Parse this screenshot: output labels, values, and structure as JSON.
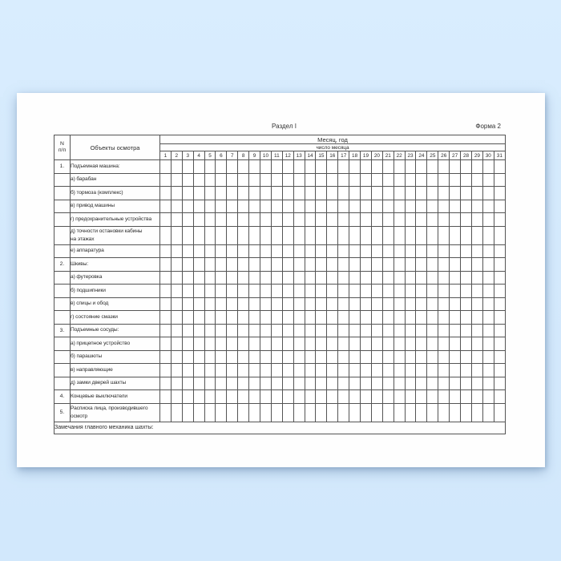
{
  "page": {
    "section_title": "Раздел I",
    "form_label": "Форма 2"
  },
  "table": {
    "num_col_header": "N\nп/п",
    "objects_header": "Объекты осмотра",
    "month_year_header": "Месяц, год",
    "day_of_month_header": "число месяца",
    "days": [
      1,
      2,
      3,
      4,
      5,
      6,
      7,
      8,
      9,
      10,
      11,
      12,
      13,
      14,
      15,
      16,
      17,
      18,
      19,
      20,
      21,
      22,
      23,
      24,
      25,
      26,
      27,
      28,
      29,
      30,
      31
    ],
    "rows": [
      {
        "num": "1.",
        "label": "Подъемная машина:",
        "tall": false
      },
      {
        "num": "",
        "label": "а) барабан",
        "tall": false
      },
      {
        "num": "",
        "label": "б) тормоза (комплекс)",
        "tall": false
      },
      {
        "num": "",
        "label": "в) привод машины",
        "tall": false
      },
      {
        "num": "",
        "label": "г) предохранительные устройства",
        "tall": false
      },
      {
        "num": "",
        "label": "д) точности остановки кабины\nна этажах",
        "tall": true
      },
      {
        "num": "",
        "label": "е) аппаратура",
        "tall": false
      },
      {
        "num": "2.",
        "label": "Шкивы:",
        "tall": false
      },
      {
        "num": "",
        "label": "а) футеровка",
        "tall": false
      },
      {
        "num": "",
        "label": "б) подшипники",
        "tall": false
      },
      {
        "num": "",
        "label": "в) спицы и обод",
        "tall": false
      },
      {
        "num": "",
        "label": "г) состояние смазки",
        "tall": false
      },
      {
        "num": "3.",
        "label": "Подъемные сосуды:",
        "tall": false
      },
      {
        "num": "",
        "label": "а) прицепное устройство",
        "tall": false
      },
      {
        "num": "",
        "label": "б) парашюты",
        "tall": false
      },
      {
        "num": "",
        "label": "в) направляющие",
        "tall": false
      },
      {
        "num": "",
        "label": "д) замки дверей шахты",
        "tall": false
      },
      {
        "num": "4.",
        "label": "Концевые выключатели",
        "tall": false
      },
      {
        "num": "5.",
        "label": "Расписка лица, производившего\nосмотр",
        "tall": true
      }
    ],
    "footer_note": "Замечания главного механика шахты:"
  },
  "colors": {
    "background": "#d6ebfc",
    "paper": "#fefefe",
    "table_border": "#545454",
    "text": "#2b2b2b"
  }
}
